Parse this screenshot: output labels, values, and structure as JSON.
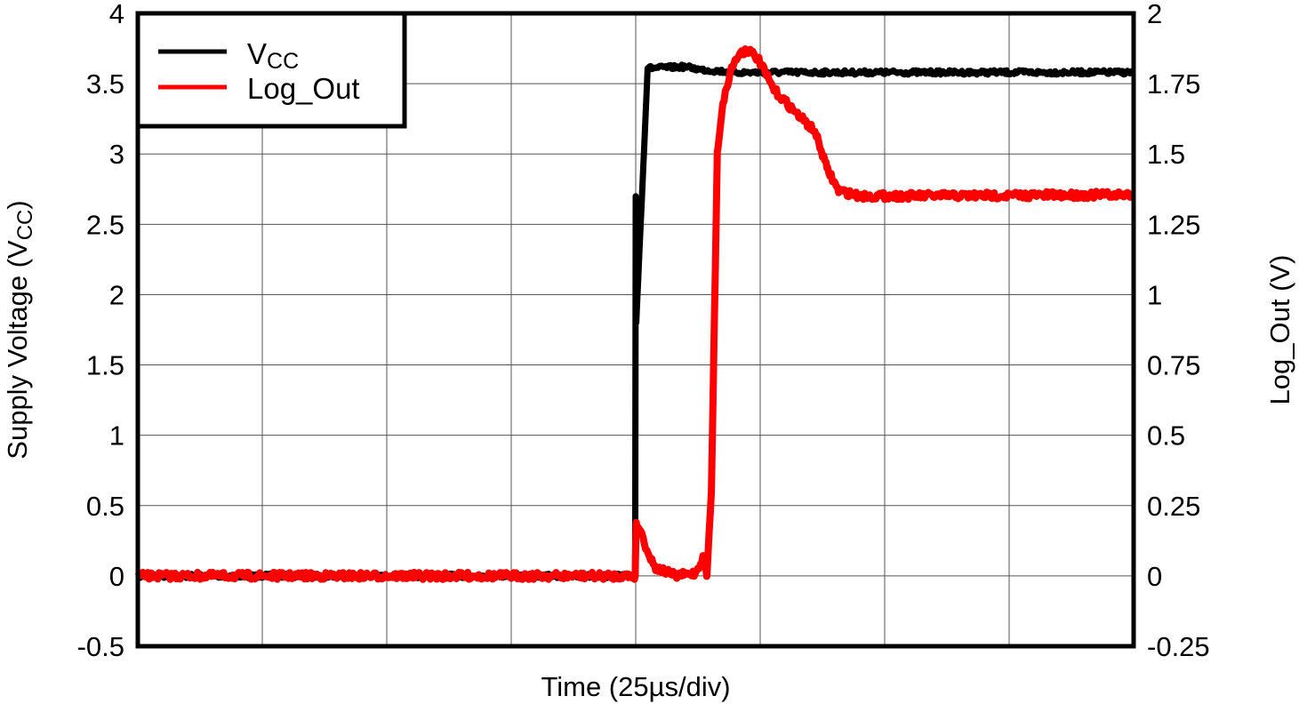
{
  "chart_data": {
    "type": "line",
    "title": "",
    "xlabel": "Time (25µs/div)",
    "ylabel_left": {
      "main": "Supply Voltage (V",
      "sub": "CC",
      "end": ")"
    },
    "ylabel_right": "Log_Out (V)",
    "xlim_us": [
      0,
      200
    ],
    "x_divisions": 8,
    "ylim_left": [
      -0.5,
      4
    ],
    "ylim_right": [
      -0.25,
      2
    ],
    "yticks_left": [
      "-0.5",
      "0",
      "0.5",
      "1",
      "1.5",
      "2",
      "2.5",
      "3",
      "3.5",
      "4"
    ],
    "yticks_right": [
      "-0.25",
      "0",
      "0.25",
      "0.5",
      "0.75",
      "1",
      "1.25",
      "1.5",
      "1.75",
      "2"
    ],
    "grid": true,
    "legend_position": "top-left",
    "series": [
      {
        "name": "V",
        "name_sub": "CC",
        "axis": "left",
        "color": "#000000",
        "x_us": [
          0,
          99.9,
          100.0,
          100.1,
          102.4,
          110,
          113,
          120,
          200
        ],
        "y": [
          0,
          0,
          2.7,
          1.8,
          3.61,
          3.62,
          3.6,
          3.58,
          3.58
        ]
      },
      {
        "name": "Log_Out",
        "axis": "right",
        "color": "#ff0000",
        "x_us": [
          0,
          99.9,
          100.1,
          101,
          102.5,
          103.9,
          108,
          112,
          113.7,
          114.3,
          115.2,
          116.4,
          117.5,
          119.3,
          121,
          122.6,
          124.5,
          127.7,
          132,
          136,
          138.4,
          140.7,
          145,
          200
        ],
        "y": [
          0,
          0,
          0.19,
          0.16,
          0.08,
          0.03,
          0.0,
          0.01,
          0.07,
          0.0,
          0.3,
          1.51,
          1.68,
          1.81,
          1.86,
          1.87,
          1.84,
          1.73,
          1.65,
          1.58,
          1.45,
          1.37,
          1.35,
          1.355
        ]
      }
    ]
  }
}
